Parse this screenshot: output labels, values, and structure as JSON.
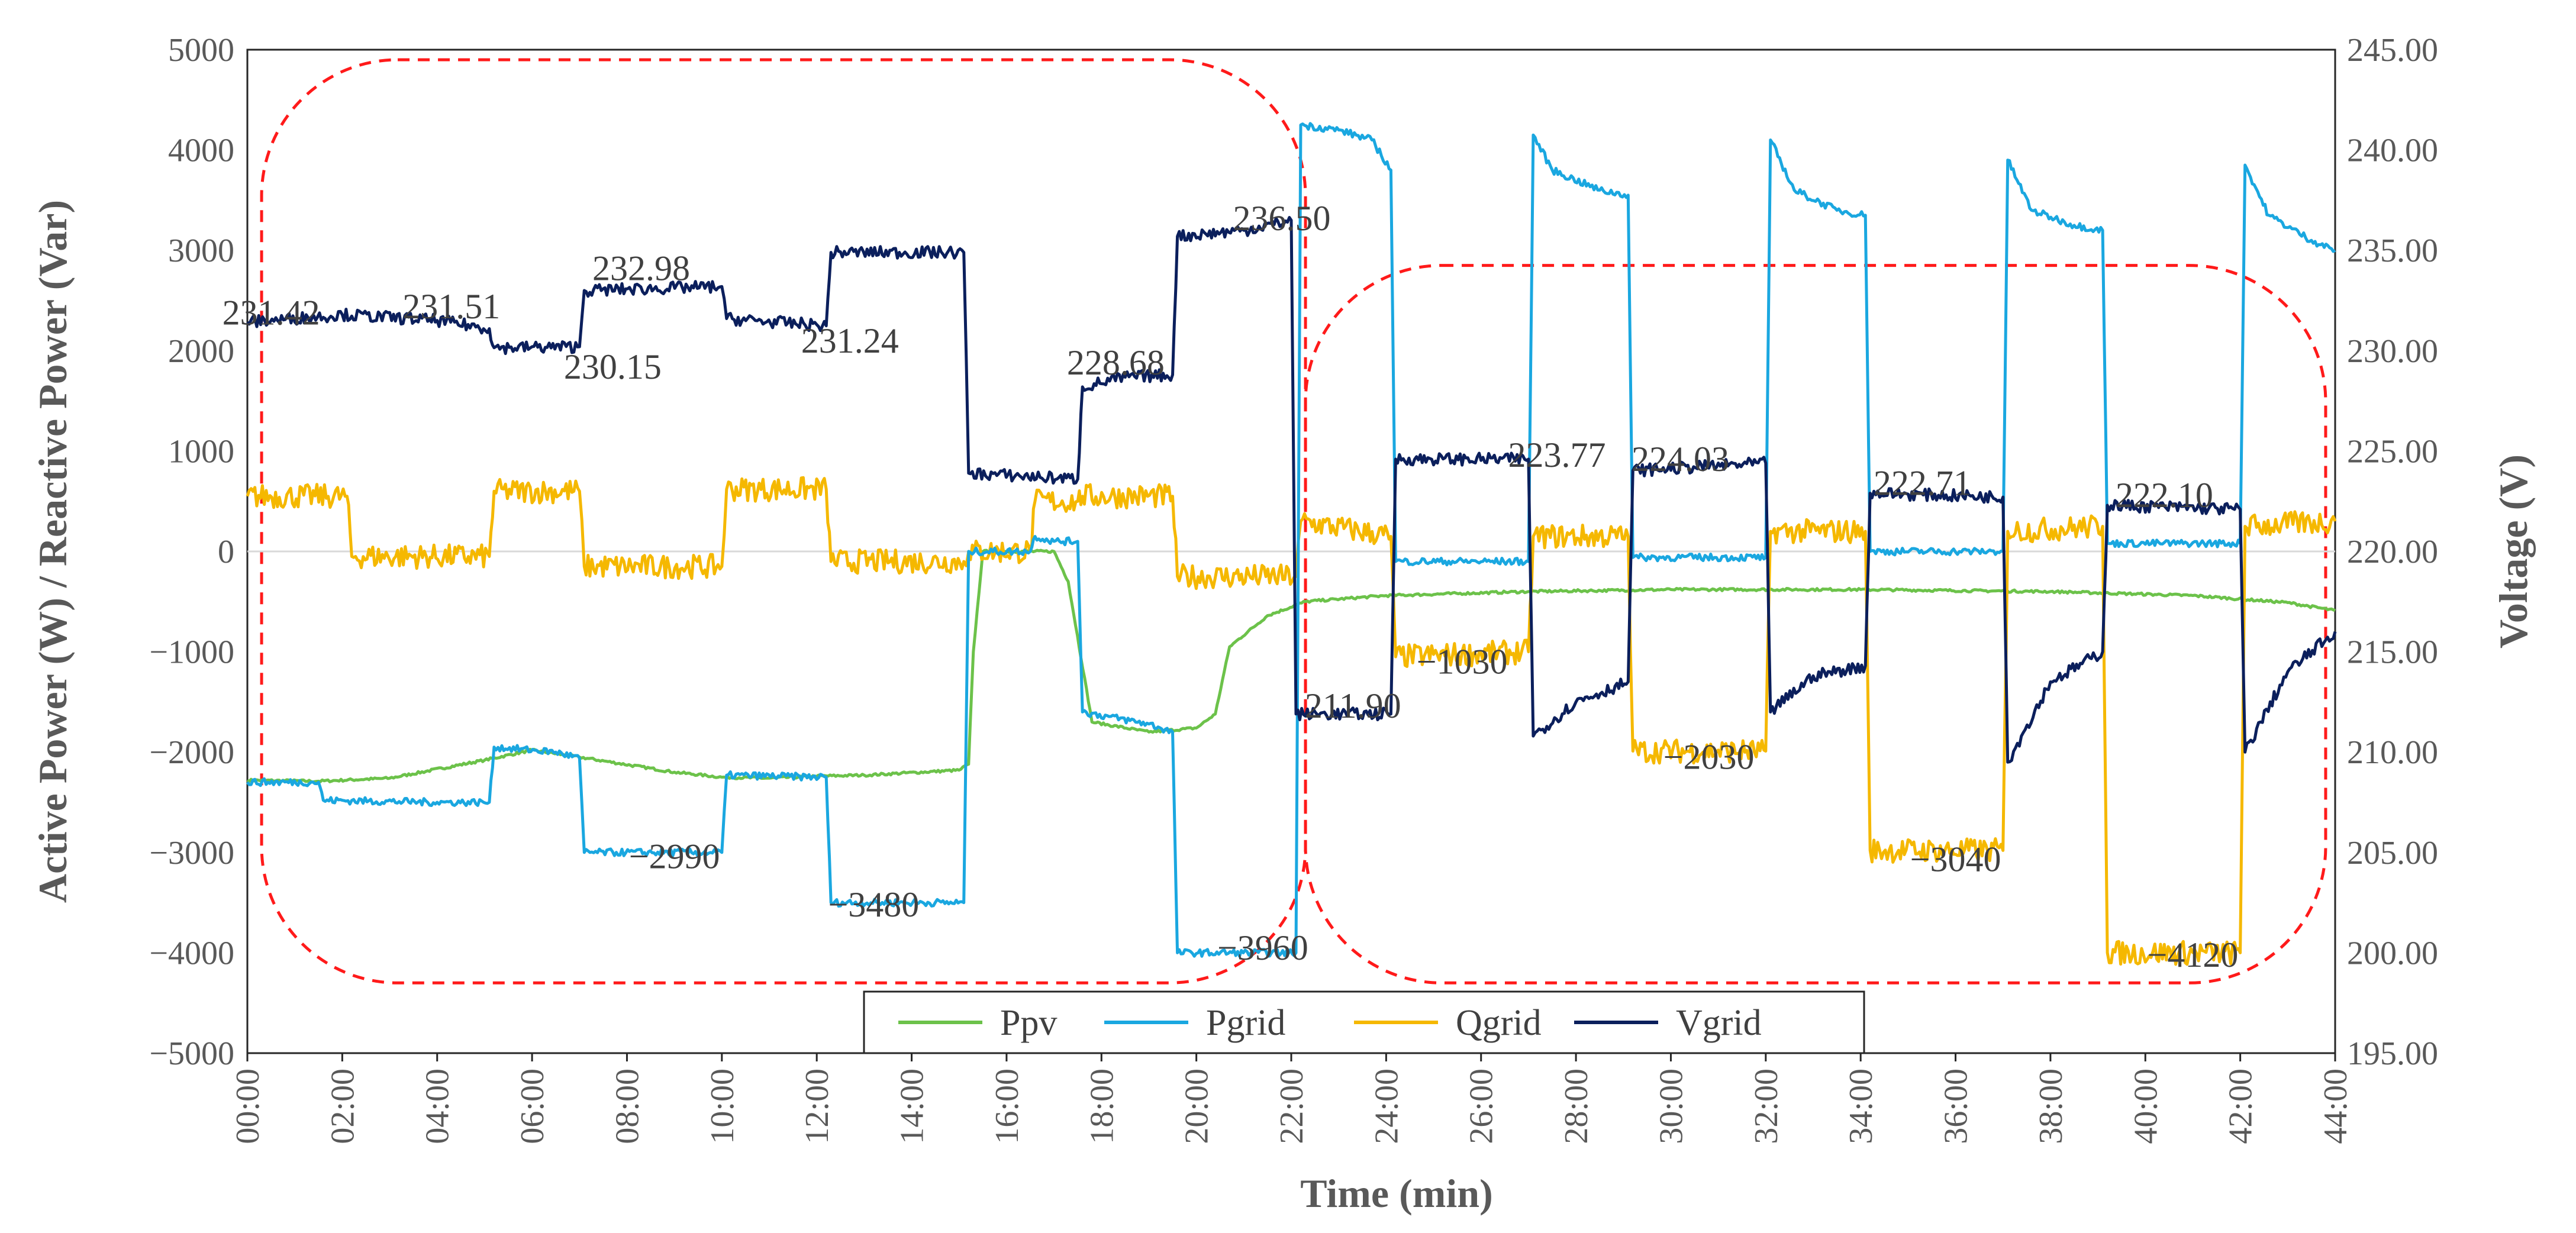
{
  "chart_data": {
    "type": "line",
    "xlabel": "Time (min)",
    "ylabel": "Active  Power (W) / Reactive Power (Var)",
    "y2label": "Voltage (V)",
    "xlim": [
      0,
      44
    ],
    "ylim": [
      -5000,
      5000
    ],
    "y2lim": [
      195,
      245
    ],
    "x_tick_labels": [
      "00:00",
      "02:00",
      "04:00",
      "06:00",
      "08:00",
      "10:00",
      "12:00",
      "14:00",
      "16:00",
      "18:00",
      "20:00",
      "22:00",
      "24:00",
      "26:00",
      "28:00",
      "30:00",
      "32:00",
      "34:00",
      "36:00",
      "38:00",
      "40:00",
      "42:00",
      "44:00"
    ],
    "y_tick_labels": [
      "5000",
      "4000",
      "3000",
      "2000",
      "1000",
      "0",
      "−1000",
      "−2000",
      "−3000",
      "−4000",
      "−5000"
    ],
    "y2_tick_labels": [
      "245.00",
      "240.00",
      "235.00",
      "230.00",
      "225.00",
      "220.00",
      "215.00",
      "210.00",
      "205.00",
      "200.00",
      "195.00"
    ],
    "legend_position": "bottom-center",
    "series": [
      {
        "name": "Ppv",
        "axis": "left",
        "color": "#6cc24a",
        "noise": 12,
        "points": [
          [
            0,
            -2280
          ],
          [
            1.5,
            -2290
          ],
          [
            3,
            -2260
          ],
          [
            5,
            -2080
          ],
          [
            6,
            -1980
          ],
          [
            7,
            -2050
          ],
          [
            9,
            -2200
          ],
          [
            10,
            -2250
          ],
          [
            11,
            -2260
          ],
          [
            12,
            -2240
          ],
          [
            13,
            -2230
          ],
          [
            15,
            -2180
          ],
          [
            15.2,
            -2120
          ],
          [
            15.3,
            -1000
          ],
          [
            15.5,
            0
          ],
          [
            17,
            0
          ],
          [
            17.3,
            -300
          ],
          [
            17.8,
            -1700
          ],
          [
            19,
            -1800
          ],
          [
            20,
            -1760
          ],
          [
            20.4,
            -1620
          ],
          [
            20.7,
            -950
          ],
          [
            21.5,
            -640
          ],
          [
            22.3,
            -500
          ],
          [
            24,
            -440
          ],
          [
            27,
            -400
          ],
          [
            30,
            -380
          ],
          [
            34,
            -380
          ],
          [
            38,
            -400
          ],
          [
            41,
            -440
          ],
          [
            43,
            -510
          ],
          [
            44,
            -590
          ]
        ]
      },
      {
        "name": "Pgrid",
        "axis": "left",
        "color": "#1aa7e0",
        "noise": 35,
        "points": [
          [
            0,
            -2300
          ],
          [
            1.5,
            -2300
          ],
          [
            1.6,
            -2480
          ],
          [
            4,
            -2500
          ],
          [
            5.1,
            -2500
          ],
          [
            5.2,
            -1950
          ],
          [
            6.5,
            -2000
          ],
          [
            7,
            -2060
          ],
          [
            7.1,
            -3000
          ],
          [
            10,
            -3000
          ],
          [
            10.1,
            -2230
          ],
          [
            12.2,
            -2250
          ],
          [
            12.3,
            -3500
          ],
          [
            15.1,
            -3500
          ],
          [
            15.2,
            0
          ],
          [
            16.5,
            0
          ],
          [
            16.6,
            150
          ],
          [
            17,
            100
          ],
          [
            17.5,
            100
          ],
          [
            17.6,
            -1600
          ],
          [
            19,
            -1720
          ],
          [
            19.5,
            -1800
          ],
          [
            19.6,
            -4000
          ],
          [
            22.1,
            -4000
          ],
          [
            22.2,
            4250
          ],
          [
            23,
            4200
          ],
          [
            23.7,
            4100
          ],
          [
            24.1,
            3800
          ],
          [
            24.2,
            -100
          ],
          [
            27,
            -100
          ],
          [
            27.1,
            4150
          ],
          [
            27.5,
            3800
          ],
          [
            28.5,
            3600
          ],
          [
            29.1,
            3550
          ],
          [
            29.2,
            -60
          ],
          [
            32,
            -60
          ],
          [
            32.1,
            4100
          ],
          [
            32.6,
            3600
          ],
          [
            33.5,
            3400
          ],
          [
            34.1,
            3350
          ],
          [
            34.2,
            0
          ],
          [
            37,
            0
          ],
          [
            37.1,
            3900
          ],
          [
            37.6,
            3400
          ],
          [
            38.5,
            3250
          ],
          [
            39.1,
            3200
          ],
          [
            39.2,
            80
          ],
          [
            42,
            80
          ],
          [
            42.1,
            3850
          ],
          [
            42.6,
            3350
          ],
          [
            43.5,
            3100
          ],
          [
            44,
            3000
          ]
        ]
      },
      {
        "name": "Qgrid",
        "axis": "left",
        "color": "#f5b800",
        "noise": 120,
        "points": [
          [
            0,
            550
          ],
          [
            2.1,
            550
          ],
          [
            2.2,
            -50
          ],
          [
            5.1,
            -50
          ],
          [
            5.2,
            600
          ],
          [
            7,
            600
          ],
          [
            7.1,
            -150
          ],
          [
            10,
            -150
          ],
          [
            10.1,
            620
          ],
          [
            12.2,
            620
          ],
          [
            12.3,
            -100
          ],
          [
            15.1,
            -100
          ],
          [
            15.2,
            0
          ],
          [
            16.5,
            0
          ],
          [
            16.6,
            500
          ],
          [
            17.5,
            500
          ],
          [
            17.6,
            550
          ],
          [
            19.5,
            550
          ],
          [
            19.6,
            -250
          ],
          [
            22.1,
            -250
          ],
          [
            22.2,
            300
          ],
          [
            24.1,
            150
          ],
          [
            24.2,
            -1050
          ],
          [
            27,
            -1000
          ],
          [
            27.1,
            150
          ],
          [
            29.1,
            150
          ],
          [
            29.2,
            -1990
          ],
          [
            32,
            -1990
          ],
          [
            32.1,
            200
          ],
          [
            34.1,
            200
          ],
          [
            34.2,
            -2980
          ],
          [
            37,
            -2980
          ],
          [
            37.1,
            200
          ],
          [
            39.1,
            250
          ],
          [
            39.2,
            -4000
          ],
          [
            42,
            -4000
          ],
          [
            42.1,
            250
          ],
          [
            44,
            300
          ]
        ]
      },
      {
        "name": "Vgrid",
        "axis": "right",
        "color": "#0b1f5c",
        "noise": 0.3,
        "points": [
          [
            0,
            231.42
          ],
          [
            2,
            231.8
          ],
          [
            4,
            231.51
          ],
          [
            5.1,
            231.1
          ],
          [
            5.2,
            230.15
          ],
          [
            7,
            230.2
          ],
          [
            7.1,
            233.0
          ],
          [
            10,
            233.2
          ],
          [
            10.1,
            231.6
          ],
          [
            12.2,
            231.24
          ],
          [
            12.3,
            234.9
          ],
          [
            15.1,
            234.9
          ],
          [
            15.2,
            223.9
          ],
          [
            17.5,
            223.6
          ],
          [
            17.6,
            228.2
          ],
          [
            18.5,
            228.68
          ],
          [
            19.5,
            228.8
          ],
          [
            19.6,
            235.7
          ],
          [
            21,
            236.0
          ],
          [
            22,
            236.5
          ],
          [
            22.1,
            211.9
          ],
          [
            24.1,
            211.9
          ],
          [
            24.2,
            224.6
          ],
          [
            27,
            224.6
          ],
          [
            27.1,
            210.8
          ],
          [
            28,
            212.5
          ],
          [
            29.1,
            213.5
          ],
          [
            29.2,
            224.03
          ],
          [
            32,
            224.4
          ],
          [
            32.1,
            212.0
          ],
          [
            33,
            213.8
          ],
          [
            34.1,
            214.3
          ],
          [
            34.2,
            222.9
          ],
          [
            37,
            222.71
          ],
          [
            37.1,
            209.5
          ],
          [
            38,
            213.5
          ],
          [
            39.1,
            215.0
          ],
          [
            39.2,
            222.3
          ],
          [
            42,
            222.1
          ],
          [
            42.1,
            210.0
          ],
          [
            43,
            214.0
          ],
          [
            44,
            216.0
          ]
        ]
      }
    ],
    "annotations": [
      {
        "text": "231.42",
        "axis": "right",
        "x": 0.5,
        "y": 231.9
      },
      {
        "text": "231.51",
        "axis": "right",
        "x": 4.3,
        "y": 232.2
      },
      {
        "text": "232.98",
        "axis": "right",
        "x": 8.3,
        "y": 234.1
      },
      {
        "text": "230.15",
        "axis": "right",
        "x": 7.7,
        "y": 229.2
      },
      {
        "text": "231.24",
        "axis": "right",
        "x": 12.7,
        "y": 230.5
      },
      {
        "text": "228.68",
        "axis": "right",
        "x": 18.3,
        "y": 229.4
      },
      {
        "text": "236.50",
        "axis": "right",
        "x": 21.8,
        "y": 236.6
      },
      {
        "text": "223.77",
        "axis": "right",
        "x": 27.6,
        "y": 224.8
      },
      {
        "text": "224.03",
        "axis": "right",
        "x": 30.2,
        "y": 224.6
      },
      {
        "text": "222.71",
        "axis": "right",
        "x": 35.3,
        "y": 223.4
      },
      {
        "text": "222.10",
        "axis": "right",
        "x": 40.4,
        "y": 222.8
      },
      {
        "text": "211.90",
        "axis": "right",
        "x": 23.3,
        "y": 212.3
      },
      {
        "text": "−1030",
        "axis": "left",
        "x": 25.6,
        "y": -1100
      },
      {
        "text": "−2030",
        "axis": "left",
        "x": 30.8,
        "y": -2050
      },
      {
        "text": "−3040",
        "axis": "left",
        "x": 36.0,
        "y": -3070
      },
      {
        "text": "−4120",
        "axis": "left",
        "x": 41.0,
        "y": -4020
      },
      {
        "text": "−2990",
        "axis": "left",
        "x": 9.0,
        "y": -3040
      },
      {
        "text": "−3480",
        "axis": "left",
        "x": 13.2,
        "y": -3520
      },
      {
        "text": "−3960",
        "axis": "left",
        "x": 21.4,
        "y": -3950
      }
    ],
    "highlight_regions": [
      {
        "x0": 0.3,
        "x1": 22.3,
        "y0": 4900,
        "y1": -4300
      },
      {
        "x0": 22.3,
        "x1": 43.8,
        "y0": 2850,
        "y1": -4300
      }
    ]
  }
}
